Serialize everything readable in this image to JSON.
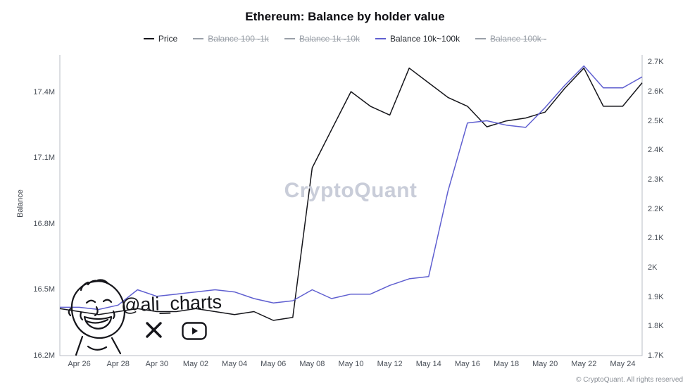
{
  "title": "Ethereum: Balance by holder value",
  "watermark": "CryptoQuant",
  "footer": "© CryptoQuant. All rights reserved",
  "signature": {
    "handle": "@ali_charts"
  },
  "colors": {
    "price": "#15151a",
    "balance_10k_100k": "#5f5fd0",
    "disabled": "#9aa0a8",
    "axis": "#b9bdc6",
    "tick_text": "#474d56"
  },
  "legend": [
    {
      "label": "Price",
      "color": "#15151a",
      "active": true
    },
    {
      "label": "Balance 100 -1k",
      "color": "#9aa0a8",
      "active": false
    },
    {
      "label": "Balance 1k -10k",
      "color": "#9aa0a8",
      "active": false
    },
    {
      "label": "Balance 10k~100k",
      "color": "#5f5fd0",
      "active": true
    },
    {
      "label": "Balance 100k -",
      "color": "#9aa0a8",
      "active": false
    }
  ],
  "axes": {
    "left": {
      "label": "Balance",
      "ticks": [
        "16.2M",
        "16.5M",
        "16.8M",
        "17.1M",
        "17.4M"
      ],
      "tick_values": [
        16.2,
        16.5,
        16.8,
        17.1,
        17.4
      ]
    },
    "right": {
      "ticks": [
        "1.7K",
        "1.8K",
        "1.9K",
        "2K",
        "2.1K",
        "2.2K",
        "2.3K",
        "2.4K",
        "2.5K",
        "2.6K",
        "2.7K"
      ],
      "tick_values": [
        1.7,
        1.8,
        1.9,
        2.0,
        2.1,
        2.2,
        2.3,
        2.4,
        2.5,
        2.6,
        2.7
      ]
    }
  },
  "chart_data": {
    "type": "line",
    "x": [
      "Apr 25",
      "Apr 26",
      "Apr 27",
      "Apr 28",
      "Apr 29",
      "Apr 30",
      "May 01",
      "May 02",
      "May 03",
      "May 04",
      "May 05",
      "May 06",
      "May 07",
      "May 08",
      "May 09",
      "May 10",
      "May 11",
      "May 12",
      "May 13",
      "May 14",
      "May 15",
      "May 16",
      "May 17",
      "May 18",
      "May 19",
      "May 20",
      "May 21",
      "May 22",
      "May 23",
      "May 24",
      "May 25"
    ],
    "series": [
      {
        "name": "Price",
        "axis": "right",
        "color": "#15151a",
        "values": [
          1.86,
          1.85,
          1.84,
          1.85,
          1.86,
          1.85,
          1.85,
          1.86,
          1.85,
          1.84,
          1.85,
          1.82,
          1.83,
          2.34,
          2.47,
          2.6,
          2.55,
          2.52,
          2.68,
          2.63,
          2.58,
          2.55,
          2.48,
          2.5,
          2.51,
          2.53,
          2.61,
          2.68,
          2.55,
          2.55,
          2.63
        ]
      },
      {
        "name": "Balance 10k~100k",
        "axis": "left",
        "color": "#5f5fd0",
        "values": [
          16.42,
          16.42,
          16.41,
          16.43,
          16.5,
          16.47,
          16.48,
          16.49,
          16.5,
          16.49,
          16.46,
          16.44,
          16.45,
          16.5,
          16.46,
          16.48,
          16.48,
          16.52,
          16.55,
          16.56,
          16.95,
          17.26,
          17.27,
          17.25,
          17.24,
          17.33,
          17.43,
          17.52,
          17.42,
          17.42,
          17.47
        ]
      }
    ],
    "left_ylim": [
      16.2,
      17.57
    ],
    "right_ylim": [
      1.7,
      2.725
    ],
    "legend_position": "top",
    "grid": false
  }
}
